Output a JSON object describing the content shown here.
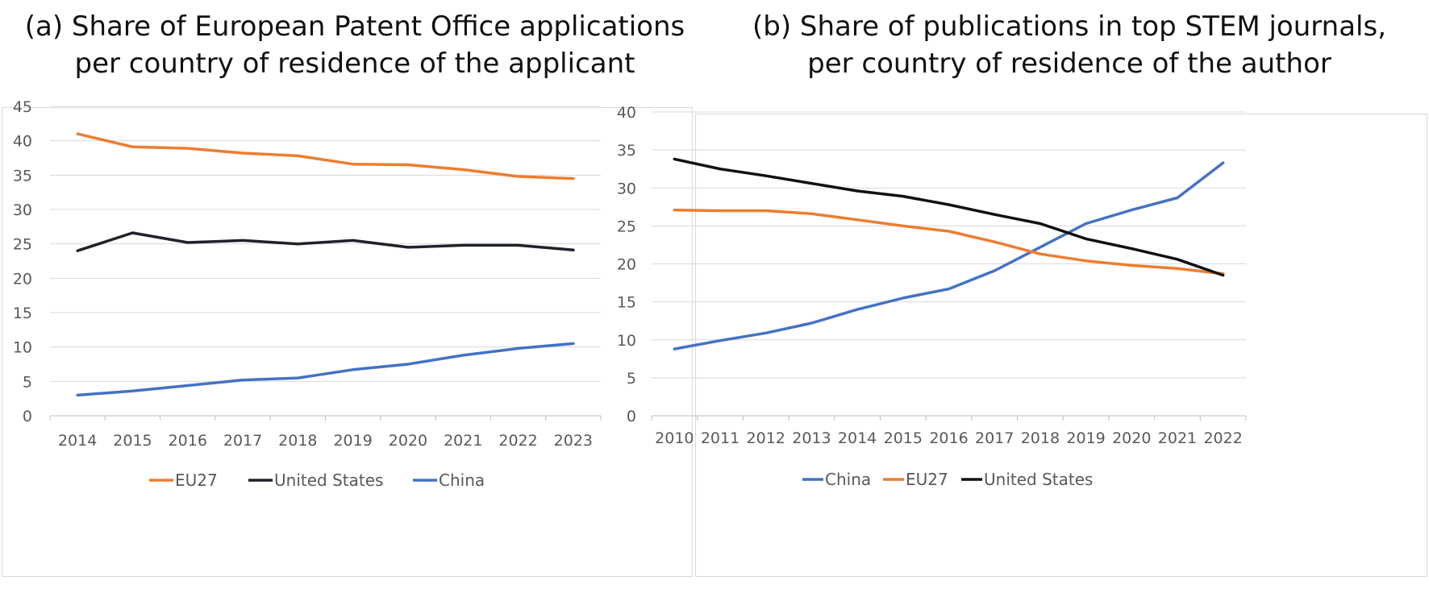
{
  "chart_data": [
    {
      "type": "line",
      "title_lines": [
        "(a) Share of European Patent Office applications",
        "per country of residence of the applicant"
      ],
      "categories": [
        "2014",
        "2015",
        "2016",
        "2017",
        "2018",
        "2019",
        "2020",
        "2021",
        "2022",
        "2023"
      ],
      "ylim": [
        0,
        45
      ],
      "yticks": [
        "0",
        "5",
        "10",
        "15",
        "20",
        "25",
        "30",
        "35",
        "40",
        "45"
      ],
      "grid": true,
      "legend_position": "bottom",
      "series": [
        {
          "name": "EU27",
          "color": "#ed7d31",
          "values": [
            41.0,
            39.1,
            38.9,
            38.2,
            37.8,
            36.6,
            36.5,
            35.8,
            34.8,
            34.5
          ]
        },
        {
          "name": "United States",
          "color": "#1f2329",
          "values": [
            24.0,
            26.6,
            25.2,
            25.5,
            25.0,
            25.5,
            24.5,
            24.8,
            24.8,
            24.1
          ]
        },
        {
          "name": "China",
          "color": "#4472c4",
          "values": [
            3.0,
            3.6,
            4.4,
            5.2,
            5.5,
            6.7,
            7.5,
            8.8,
            9.8,
            10.5
          ]
        }
      ]
    },
    {
      "type": "line",
      "title_lines": [
        "(b) Share of publications in top STEM journals,",
        "per country of residence of the author"
      ],
      "categories": [
        "2010",
        "2011",
        "2012",
        "2013",
        "2014",
        "2015",
        "2016",
        "2017",
        "2018",
        "2019",
        "2020",
        "2021",
        "2022"
      ],
      "ylim": [
        0,
        40
      ],
      "yticks": [
        "0",
        "5",
        "10",
        "15",
        "20",
        "25",
        "30",
        "35",
        "40"
      ],
      "grid": true,
      "legend_position": "bottom",
      "series": [
        {
          "name": "China",
          "color": "#4472c4",
          "values": [
            8.8,
            9.9,
            10.9,
            12.2,
            14.0,
            15.5,
            16.7,
            19.1,
            22.2,
            25.3,
            27.1,
            28.7,
            33.3
          ]
        },
        {
          "name": "EU27",
          "color": "#ed7d31",
          "values": [
            27.1,
            27.0,
            27.0,
            26.6,
            25.8,
            25.0,
            24.3,
            22.9,
            21.3,
            20.4,
            19.8,
            19.4,
            18.7
          ]
        },
        {
          "name": "United States",
          "color": "#111111",
          "values": [
            33.8,
            32.5,
            31.6,
            30.6,
            29.6,
            28.9,
            27.8,
            26.5,
            25.3,
            23.3,
            22.0,
            20.6,
            18.5
          ]
        }
      ]
    }
  ]
}
